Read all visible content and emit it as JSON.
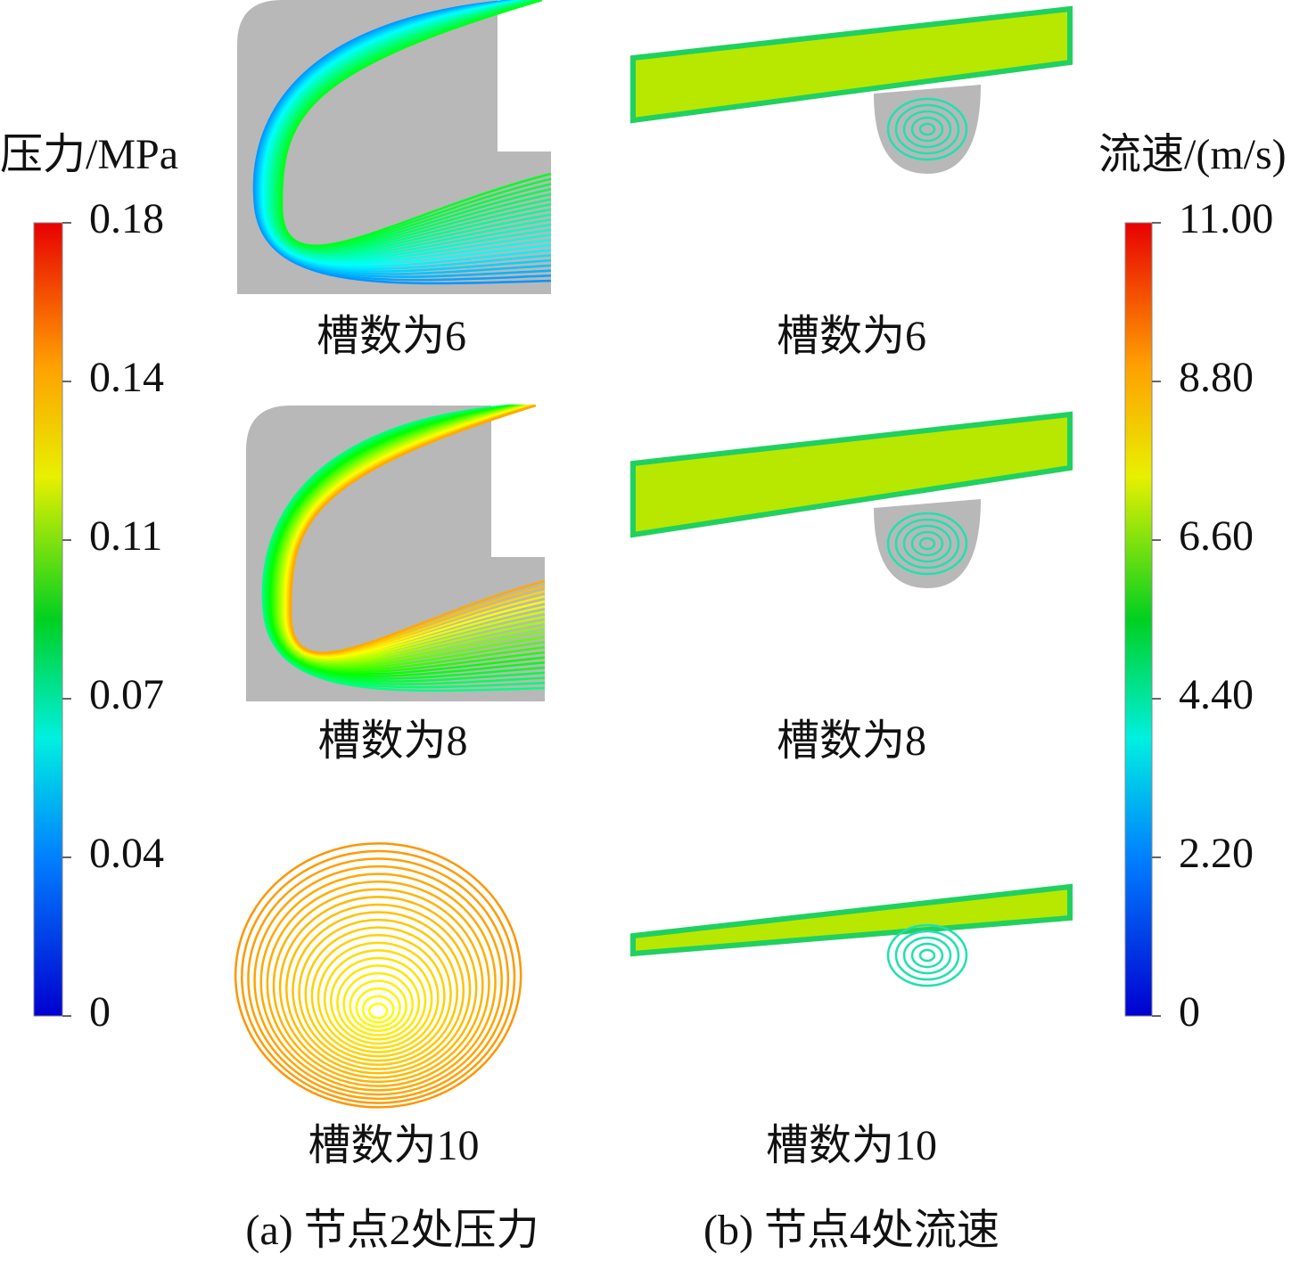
{
  "left_colorbar": {
    "title": "压力/MPa",
    "ticks": [
      "0.18",
      "0.14",
      "0.11",
      "0.07",
      "0.04",
      "0"
    ]
  },
  "right_colorbar": {
    "title": "流速/(m/s)",
    "ticks": [
      "11.00",
      "8.80",
      "6.60",
      "4.40",
      "2.20",
      "0"
    ]
  },
  "columns": [
    {
      "caption": "(a) 节点2处压力",
      "rows": [
        "槽数为6",
        "槽数为8",
        "槽数为10"
      ]
    },
    {
      "caption": "(b) 节点4处流速",
      "rows": [
        "槽数为6",
        "槽数为8",
        "槽数为10"
      ]
    }
  ]
}
